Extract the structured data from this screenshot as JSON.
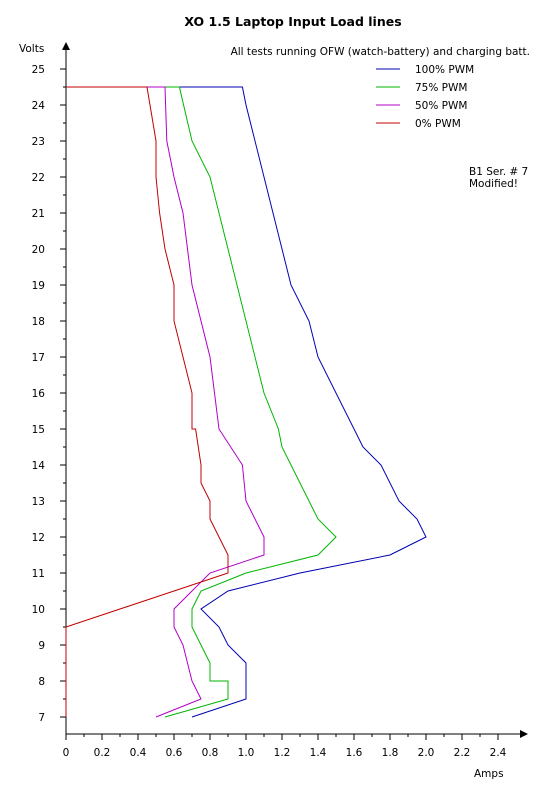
{
  "chart_data": {
    "type": "line",
    "title": "XO 1.5 Laptop Input Load lines",
    "subtitle": "All tests running OFW (watch-battery) and charging batt.",
    "xlabel": "Amps",
    "ylabel": "Volts",
    "note_lines": [
      "B1 Ser. # 7",
      "Modified!"
    ],
    "xlim": [
      0,
      2.4
    ],
    "ylim": [
      7,
      25
    ],
    "x_ticks": [
      {
        "value": 0,
        "label": "0"
      },
      {
        "value": 0.2,
        "label": "0.2"
      },
      {
        "value": 0.4,
        "label": "0.4"
      },
      {
        "value": 0.6,
        "label": "0.6"
      },
      {
        "value": 0.8,
        "label": "0.8"
      },
      {
        "value": 1.0,
        "label": "1.0"
      },
      {
        "value": 1.2,
        "label": "1.2"
      },
      {
        "value": 1.4,
        "label": "1.4"
      },
      {
        "value": 1.6,
        "label": "1.6"
      },
      {
        "value": 1.8,
        "label": "1.8"
      },
      {
        "value": 2.0,
        "label": "2.0"
      },
      {
        "value": 2.2,
        "label": "2.2"
      },
      {
        "value": 2.4,
        "label": "2.4"
      }
    ],
    "y_ticks": [
      7,
      8,
      9,
      10,
      11,
      12,
      13,
      14,
      15,
      16,
      17,
      18,
      19,
      20,
      21,
      22,
      23,
      24,
      25
    ],
    "grid": false,
    "legend_position": "top-right",
    "series": [
      {
        "name": "100% PWM",
        "color": "#0000b0",
        "points": [
          [
            0.7,
            7
          ],
          [
            1.0,
            7.5
          ],
          [
            1.0,
            8
          ],
          [
            1.0,
            8.5
          ],
          [
            0.9,
            9
          ],
          [
            0.85,
            9.5
          ],
          [
            0.75,
            10
          ],
          [
            0.9,
            10.5
          ],
          [
            1.3,
            11
          ],
          [
            1.8,
            11.5
          ],
          [
            2.0,
            12
          ],
          [
            1.95,
            12.5
          ],
          [
            1.85,
            13
          ],
          [
            1.75,
            14
          ],
          [
            1.65,
            14.5
          ],
          [
            1.4,
            17
          ],
          [
            1.35,
            18
          ],
          [
            1.25,
            19
          ],
          [
            1.0,
            24
          ],
          [
            0.98,
            24.5
          ],
          [
            0.45,
            24.5
          ]
        ]
      },
      {
        "name": "75% PWM",
        "color": "#00b400",
        "points": [
          [
            0.55,
            7
          ],
          [
            0.9,
            7.5
          ],
          [
            0.9,
            8
          ],
          [
            0.8,
            8
          ],
          [
            0.8,
            8.5
          ],
          [
            0.7,
            9.5
          ],
          [
            0.7,
            10
          ],
          [
            0.75,
            10.5
          ],
          [
            1.0,
            11
          ],
          [
            1.4,
            11.5
          ],
          [
            1.5,
            12
          ],
          [
            1.4,
            12.5
          ],
          [
            1.2,
            14.5
          ],
          [
            1.18,
            15
          ],
          [
            1.1,
            16
          ],
          [
            0.8,
            22
          ],
          [
            0.7,
            23
          ],
          [
            0.63,
            24.5
          ],
          [
            0.45,
            24.5
          ]
        ]
      },
      {
        "name": "50% PWM",
        "color": "#b000c8",
        "points": [
          [
            0.5,
            7
          ],
          [
            0.75,
            7.5
          ],
          [
            0.7,
            8
          ],
          [
            0.65,
            9
          ],
          [
            0.6,
            9.5
          ],
          [
            0.6,
            10
          ],
          [
            0.7,
            10.5
          ],
          [
            0.8,
            11
          ],
          [
            1.1,
            11.5
          ],
          [
            1.1,
            12
          ],
          [
            1.0,
            13
          ],
          [
            0.98,
            14
          ],
          [
            0.85,
            15
          ],
          [
            0.8,
            17
          ],
          [
            0.75,
            18
          ],
          [
            0.7,
            19
          ],
          [
            0.65,
            21
          ],
          [
            0.6,
            22
          ],
          [
            0.56,
            23
          ],
          [
            0.55,
            24.5
          ],
          [
            0.45,
            24.5
          ]
        ]
      },
      {
        "name": "0% PWM",
        "color": "#c00000",
        "points": [
          [
            0,
            7
          ],
          [
            0,
            9.5
          ],
          [
            0.6,
            10.5
          ],
          [
            0.9,
            11
          ],
          [
            0.9,
            11.5
          ],
          [
            0.85,
            12
          ],
          [
            0.8,
            12.5
          ],
          [
            0.8,
            13
          ],
          [
            0.75,
            13.5
          ],
          [
            0.75,
            14
          ],
          [
            0.72,
            15
          ],
          [
            0.7,
            15
          ],
          [
            0.7,
            16
          ],
          [
            0.6,
            18
          ],
          [
            0.6,
            19
          ],
          [
            0.55,
            20
          ],
          [
            0.52,
            21
          ],
          [
            0.5,
            22
          ],
          [
            0.5,
            23
          ],
          [
            0.45,
            24.5
          ],
          [
            0,
            24.5
          ]
        ]
      }
    ]
  }
}
